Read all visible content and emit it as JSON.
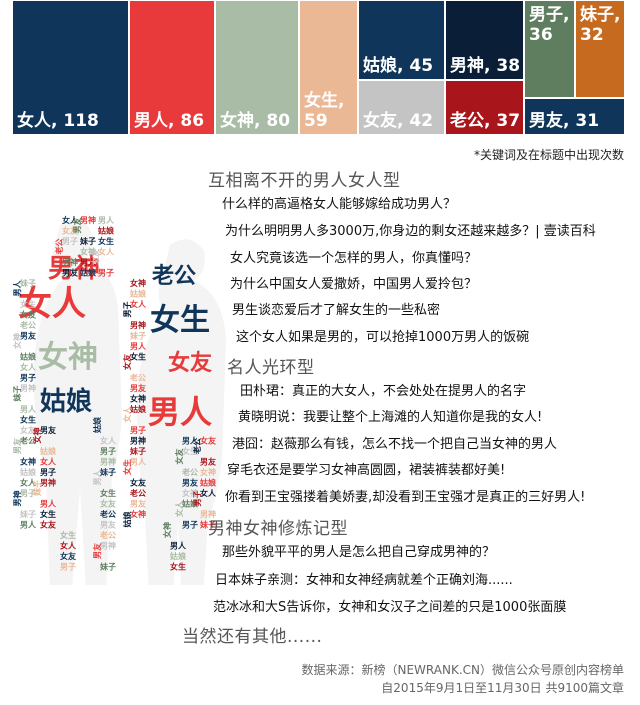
{
  "chart_data": {
    "type": "treemap",
    "items": [
      {
        "label": "女人, 118",
        "name": "女人",
        "value": 118,
        "color": "#0f355a"
      },
      {
        "label": "男人, 86",
        "name": "男人",
        "value": 86,
        "color": "#e83a3a"
      },
      {
        "label": "女神, 80",
        "name": "女神",
        "value": 80,
        "color": "#a9bca6"
      },
      {
        "label": "女生, 59",
        "name": "女生",
        "value": 59,
        "color": "#ebb895"
      },
      {
        "label": "姑娘, 45",
        "name": "姑娘",
        "value": 45,
        "color": "#0f355a"
      },
      {
        "label": "女友, 42",
        "name": "女友",
        "value": 42,
        "color": "#c4c4c4"
      },
      {
        "label": "男神, 38",
        "name": "男神",
        "value": 38,
        "color": "#0a1e38"
      },
      {
        "label": "老公, 37",
        "name": "老公",
        "value": 37,
        "color": "#a8161c"
      },
      {
        "label": "男子, 36",
        "name": "男子",
        "value": 36,
        "color": "#5e7e5f"
      },
      {
        "label": "妹子, 32",
        "name": "妹子",
        "value": 32,
        "color": "#c66a20"
      },
      {
        "label": "男友, 31",
        "name": "男友",
        "value": 31,
        "color": "#0f355a"
      }
    ]
  },
  "footnote": "*关键词及在标题中出现次数",
  "sections": [
    {
      "title": "互相离不开的男人女人型",
      "items": [
        "什么样的高逼格女人能够嫁给成功男人？",
        "为什么明明男人多3000万,你身边的剩女还越来越多？| 壹读百科",
        "女人究竟该选一个怎样的男人，你真懂吗？",
        "为什么中国女人爱撒娇，中国男人爱拎包？",
        "男生谈恋爱后才了解女生的一些私密",
        "这个女人如果是男的，可以抢掉1000万男人的饭碗"
      ]
    },
    {
      "title": "名人光环型",
      "items": [
        "田朴珺：真正的大女人，不会处处在提男人的名字",
        "黄晓明说：我要让整个上海滩的人知道你是我的女人!",
        "港囧：赵薇那么有钱，怎么不找一个把自己当女神的男人",
        "穿毛衣还是要学习女神高圆圆，裙装裤装都好美!",
        "你看到王宝强搂着美娇妻,却没看到王宝强才是真正的三好男人!"
      ]
    },
    {
      "title": "男神女神修炼记型",
      "items": [
        "那些外貌平平的男人是怎么把自己穿成男神的？",
        "日本妹子亲测：女神和女神经病就差个正确刘海......",
        "范冰冰和大S告诉你，女神和女汉子之间差的只是1000张面膜"
      ]
    }
  ],
  "closing": "当然还有其他......",
  "source": {
    "line1": "数据来源：新榜（NEWRANK.CN）微信公众号原创内容榜单",
    "line2": "自2015年9月1日至11月30日 共9100篇文章"
  },
  "word_cloud": {
    "big": [
      "女人",
      "男神",
      "姑娘",
      "女生",
      "男人",
      "女友",
      "老公",
      "女神"
    ],
    "small": [
      "女人",
      "男神",
      "男人",
      "女友",
      "男友",
      "姑娘",
      "男子",
      "妹子",
      "女生",
      "老公",
      "女神"
    ]
  }
}
